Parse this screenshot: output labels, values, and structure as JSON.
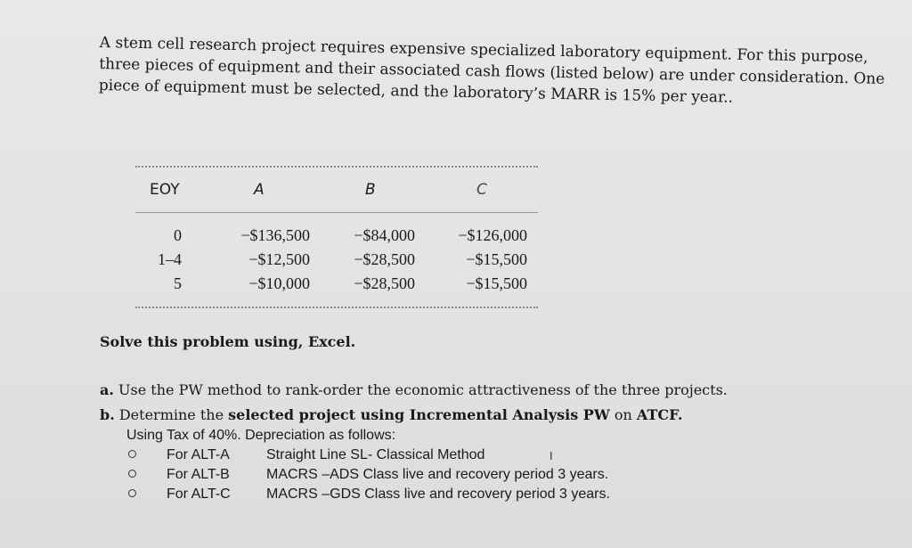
{
  "intro": {
    "lines": [
      "A stem cell research project requires expensive specialized laboratory equipment. For this purpose,",
      "three pieces of equipment and their associated cash flows (listed below) are under consideration. One",
      "piece of equipment must be selected, and the laboratory’s MARR is 15% per year.."
    ]
  },
  "table": {
    "headers": [
      "EOY",
      "A",
      "B",
      "C"
    ],
    "rows": [
      {
        "eoy": "0",
        "a": "−$136,500",
        "b": "−$84,000",
        "c": "−$126,000"
      },
      {
        "eoy": "1–4",
        "a": "−$12,500",
        "b": "−$28,500",
        "c": "−$15,500"
      },
      {
        "eoy": "5",
        "a": "−$10,000",
        "b": "−$28,500",
        "c": "−$15,500"
      }
    ]
  },
  "solve": "Solve this problem using, Excel.",
  "question_a": {
    "label": "a.",
    "text": " Use the PW method to rank-order the economic attractiveness of the three projects."
  },
  "question_b": {
    "label": "b.",
    "text_plain": " Determine the ",
    "text_bold": "selected project using Incremental Analysis PW",
    "text_mid": " on ",
    "text_end": "ATCF."
  },
  "tax_line": "Using Tax of 40%. Depreciation as follows:",
  "alternatives": [
    {
      "name": "For ALT-A",
      "desc": "Straight Line SL- Classical Method"
    },
    {
      "name": "For ALT-B",
      "desc": "MACRS –ADS  Class live and recovery period 3 years."
    },
    {
      "name": "For ALT-C",
      "desc": "MACRS –GDS  Class live and recovery period 3 years."
    }
  ],
  "icons": {
    "bullet": "hollow-circle-bullet",
    "cursor": "text-cursor-icon"
  }
}
